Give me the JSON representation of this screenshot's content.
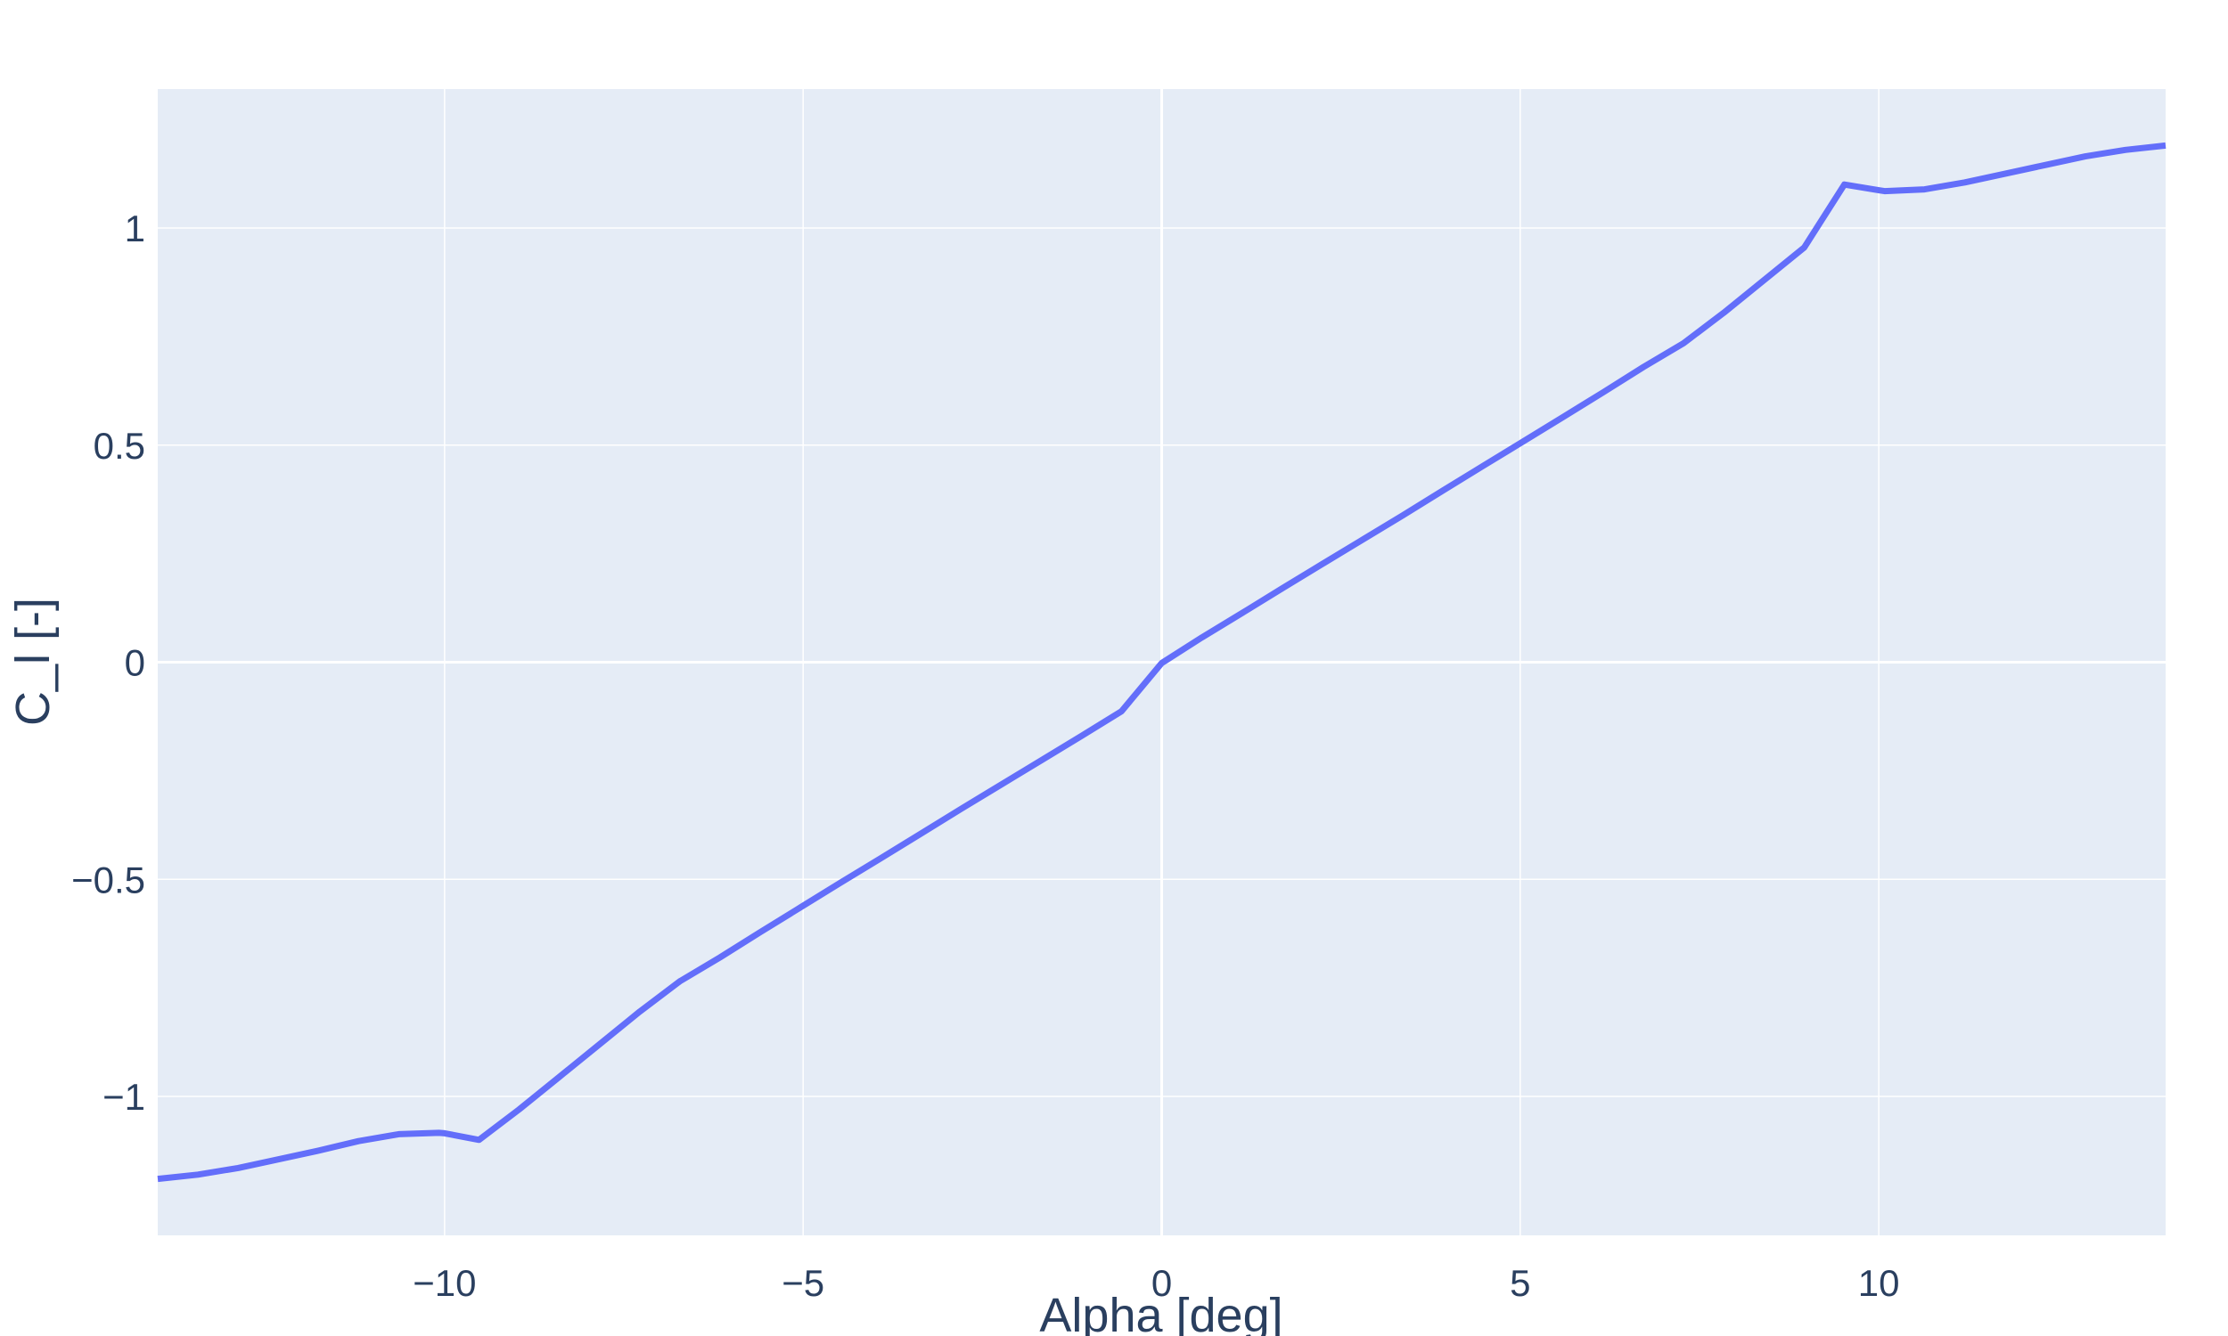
{
  "chart_data": {
    "type": "line",
    "title": "",
    "xlabel": "Alpha [deg]",
    "ylabel": "C_l [-]",
    "xlim": [
      -14,
      14
    ],
    "ylim": [
      -1.32,
      1.32
    ],
    "grid": true,
    "legend": "none",
    "colors": {
      "plot_bg": "#e5ecf6",
      "grid": "#ffffff",
      "line": "#636efa",
      "text": "#2a3f5f"
    },
    "x_ticks": [
      -10,
      -5,
      0,
      5,
      10
    ],
    "x_tick_labels": [
      "−10",
      "−5",
      "0",
      "5",
      "10"
    ],
    "y_ticks": [
      1,
      0.5,
      0,
      -0.5,
      -1
    ],
    "y_tick_labels": [
      "1",
      "0.5",
      "0",
      "−0.5",
      "−1"
    ],
    "series": [
      {
        "x": [
          -14,
          -13.44,
          -12.88,
          -12.32,
          -11.76,
          -11.2,
          -10.64,
          -10.08,
          -10,
          -9.52,
          -8.96,
          -8.4,
          -7.84,
          -7.28,
          -6.72,
          -6.16,
          -5.6,
          -5.04,
          -4.48,
          -3.92,
          -3.36,
          -2.8,
          -2.24,
          -1.68,
          -1.12,
          -0.56,
          0,
          0.56,
          1.12,
          1.68,
          2.24,
          2.8,
          3.36,
          3.92,
          4.48,
          5.04,
          5.6,
          6.16,
          6.72,
          7.28,
          7.84,
          8.4,
          8.96,
          9.52,
          10,
          10.08,
          10.64,
          11.2,
          11.76,
          12.32,
          12.88,
          13.44,
          14
        ],
        "y": [
          -1.19,
          -1.18,
          -1.165,
          -1.145,
          -1.125,
          -1.103,
          -1.087,
          -1.084,
          -1.085,
          -1.1,
          -1.03,
          -0.955,
          -0.88,
          -0.805,
          -0.735,
          -0.68,
          -0.622,
          -0.565,
          -0.508,
          -0.452,
          -0.395,
          -0.338,
          -0.282,
          -0.226,
          -0.17,
          -0.113,
          -0.002,
          0.057,
          0.113,
          0.17,
          0.226,
          0.282,
          0.338,
          0.395,
          0.452,
          0.508,
          0.565,
          0.622,
          0.68,
          0.735,
          0.805,
          0.88,
          0.955,
          1.1,
          1.087,
          1.085,
          1.089,
          1.105,
          1.125,
          1.145,
          1.165,
          1.18,
          1.19
        ]
      }
    ]
  }
}
